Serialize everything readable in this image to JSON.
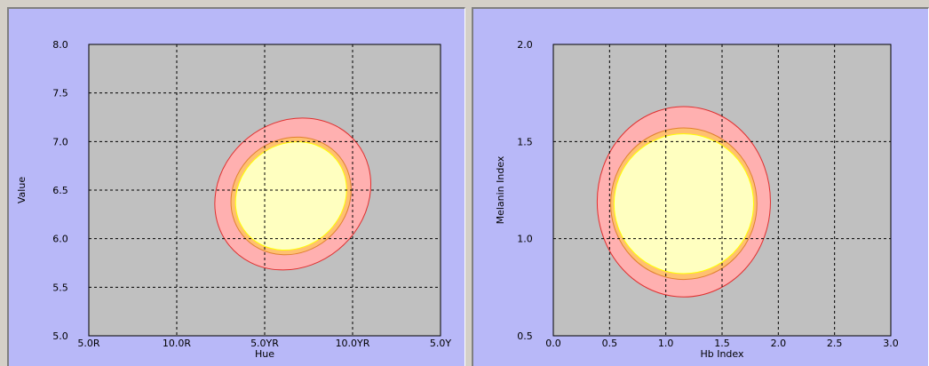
{
  "charts": [
    {
      "type": "contour-ellipse",
      "xlabel": "Hue",
      "ylabel": "Value",
      "x_ticks": [
        "5.0R",
        "10.0R",
        "5.0YR",
        "10.0YR",
        "5.0Y"
      ],
      "y_ticks": [
        "5.0",
        "5.5",
        "6.0",
        "6.5",
        "7.0",
        "7.5",
        "8.0"
      ],
      "x_tick_positions": [
        0,
        1,
        2,
        3,
        4
      ],
      "xlim": [
        0,
        4
      ],
      "ylim": [
        5.0,
        8.0
      ],
      "grid": true,
      "rings": [
        {
          "level": "outer",
          "cx": 2.32,
          "cy": 6.46,
          "rx": 0.93,
          "ry": 0.74,
          "angle_deg": -39,
          "fill": "#ffb0b0",
          "stroke": "#e03030"
        },
        {
          "level": "middle",
          "cx": 2.3,
          "cy": 6.44,
          "rx": 0.71,
          "ry": 0.58,
          "angle_deg": -39,
          "fill": "#ffc070",
          "stroke": "#e08030"
        },
        {
          "level": "inner",
          "cx": 2.3,
          "cy": 6.44,
          "rx": 0.66,
          "ry": 0.53,
          "angle_deg": -39,
          "fill": "#ffffc0",
          "stroke": "#ffff00"
        }
      ]
    },
    {
      "type": "contour-ellipse",
      "xlabel": "Hb Index",
      "ylabel": "Melanin Index",
      "x_ticks": [
        "0.0",
        "0.5",
        "1.0",
        "1.5",
        "2.0",
        "2.5",
        "3.0"
      ],
      "y_ticks": [
        "0.5",
        "1.0",
        "1.5",
        "2.0"
      ],
      "x_tick_positions": [
        0.0,
        0.5,
        1.0,
        1.5,
        2.0,
        2.5,
        3.0
      ],
      "xlim": [
        0.0,
        3.0
      ],
      "ylim": [
        0.5,
        2.0
      ],
      "grid": true,
      "rings": [
        {
          "level": "outer",
          "cx": 1.16,
          "cy": 1.19,
          "rx": 0.77,
          "ry": 0.49,
          "angle_deg": 0,
          "fill": "#ffb0b0",
          "stroke": "#e03030"
        },
        {
          "level": "middle",
          "cx": 1.16,
          "cy": 1.18,
          "rx": 0.65,
          "ry": 0.39,
          "angle_deg": 0,
          "fill": "#ffc070",
          "stroke": "#e08030"
        },
        {
          "level": "inner",
          "cx": 1.16,
          "cy": 1.18,
          "rx": 0.62,
          "ry": 0.36,
          "angle_deg": 0,
          "fill": "#ffffc0",
          "stroke": "#ffff00"
        }
      ]
    }
  ],
  "colors": {
    "panel_background": "#b8b8f8",
    "plot_background": "#c0c0c0"
  }
}
